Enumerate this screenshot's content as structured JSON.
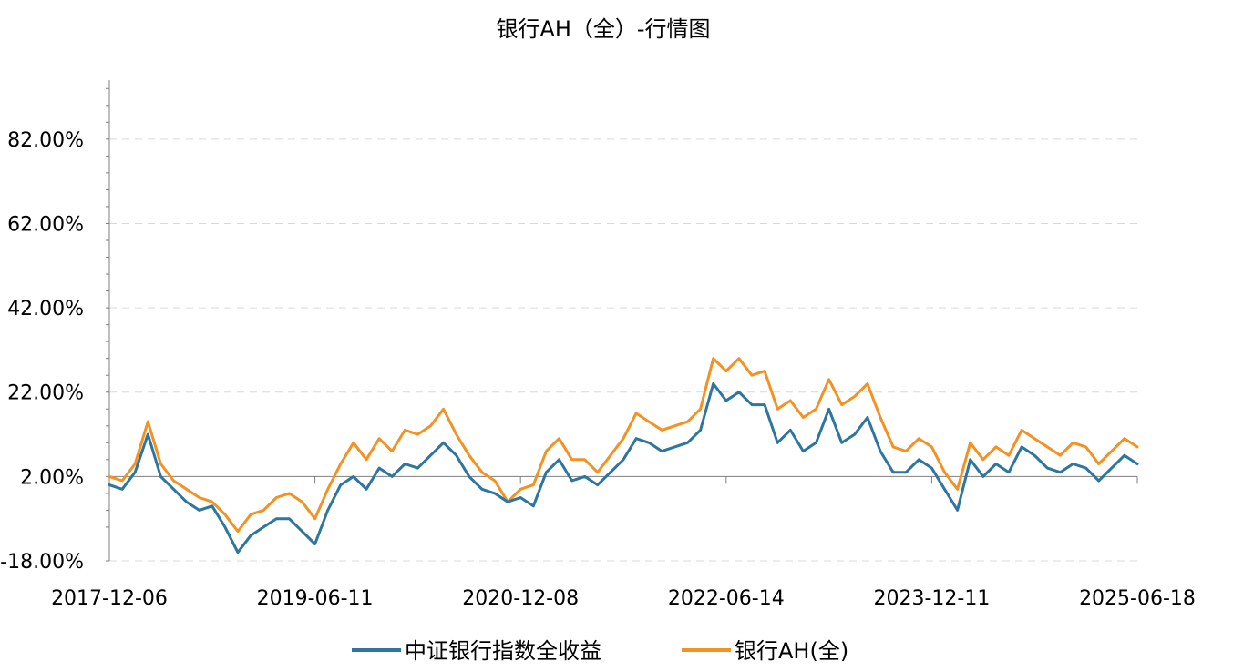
{
  "chart_data": {
    "type": "line",
    "title": "银行AH（全）-行情图",
    "xlabel": "",
    "ylabel": "",
    "x_tick_labels": [
      "2017-12-06",
      "2019-06-11",
      "2020-12-08",
      "2022-06-14",
      "2023-12-11",
      "2025-06-18"
    ],
    "y_tick_labels": [
      "-18.00%",
      "2.00%",
      "22.00%",
      "42.00%",
      "62.00%",
      "82.00%"
    ],
    "y_ticks": [
      -18,
      2,
      22,
      42,
      62,
      82
    ],
    "ylim": [
      -18,
      96
    ],
    "y_unit": "%",
    "grid": {
      "horizontal": true,
      "style": "dashed"
    },
    "legend_position": "bottom",
    "colors": {
      "bank_index": "#2E75A0",
      "bank_ah": "#F39222"
    },
    "x": [
      "2017-12-06",
      "2018-01-10",
      "2018-02-14",
      "2018-03-21",
      "2018-04-25",
      "2018-05-30",
      "2018-07-04",
      "2018-08-08",
      "2018-09-12",
      "2018-10-17",
      "2018-11-21",
      "2018-12-26",
      "2019-01-30",
      "2019-03-06",
      "2019-04-10",
      "2019-05-15",
      "2019-06-11",
      "2019-07-16",
      "2019-08-20",
      "2019-09-24",
      "2019-10-29",
      "2019-12-03",
      "2020-01-07",
      "2020-02-11",
      "2020-03-17",
      "2020-04-21",
      "2020-05-26",
      "2020-06-30",
      "2020-08-04",
      "2020-09-08",
      "2020-10-13",
      "2020-11-17",
      "2020-12-08",
      "2021-01-12",
      "2021-02-16",
      "2021-03-23",
      "2021-04-27",
      "2021-06-01",
      "2021-07-06",
      "2021-08-10",
      "2021-09-14",
      "2021-10-19",
      "2021-11-23",
      "2021-12-28",
      "2022-02-01",
      "2022-03-08",
      "2022-04-12",
      "2022-05-17",
      "2022-06-14",
      "2022-07-19",
      "2022-08-23",
      "2022-09-27",
      "2022-10-31",
      "2022-12-05",
      "2023-01-09",
      "2023-02-13",
      "2023-03-20",
      "2023-04-24",
      "2023-05-29",
      "2023-07-03",
      "2023-08-07",
      "2023-09-11",
      "2023-10-16",
      "2023-11-20",
      "2023-12-11",
      "2024-01-15",
      "2024-02-19",
      "2024-03-25",
      "2024-04-29",
      "2024-06-03",
      "2024-07-08",
      "2024-08-12",
      "2024-09-16",
      "2024-10-21",
      "2024-11-25",
      "2024-12-30",
      "2025-02-03",
      "2025-03-10",
      "2025-04-14",
      "2025-05-19",
      "2025-06-18"
    ],
    "series": [
      {
        "name": "中证银行指数全收益",
        "color": "#2E75A0",
        "values": [
          0,
          -1,
          3,
          12,
          2,
          -1,
          -4,
          -6,
          -5,
          -10,
          -16,
          -12,
          -10,
          -8,
          -8,
          -11,
          -14,
          -6,
          0,
          2,
          -1,
          4,
          2,
          5,
          4,
          7,
          10,
          7,
          2,
          -1,
          -2,
          -4,
          -3,
          -5,
          3,
          6,
          1,
          2,
          0,
          3,
          6,
          11,
          10,
          8,
          9,
          10,
          13,
          24,
          20,
          22,
          19,
          19,
          10,
          13,
          8,
          10,
          18,
          10,
          12,
          16,
          8,
          3,
          3,
          6,
          4,
          -1,
          -6,
          6,
          2,
          5,
          3,
          9,
          7,
          4,
          3,
          5,
          4,
          1,
          4,
          7,
          5
        ]
      },
      {
        "name": "银行AH(全)",
        "color": "#F39222",
        "values": [
          2,
          1,
          5,
          15,
          5,
          1,
          -1,
          -3,
          -4,
          -7,
          -11,
          -7,
          -6,
          -3,
          -2,
          -4,
          -8,
          -1,
          5,
          10,
          6,
          11,
          8,
          13,
          12,
          14,
          18,
          12,
          7,
          3,
          1,
          -4,
          -1,
          0,
          8,
          11,
          6,
          6,
          3,
          7,
          11,
          17,
          15,
          13,
          14,
          15,
          18,
          30,
          27,
          30,
          26,
          27,
          18,
          20,
          16,
          18,
          25,
          19,
          21,
          24,
          16,
          9,
          8,
          11,
          9,
          3,
          -1,
          10,
          6,
          9,
          7,
          13,
          11,
          9,
          7,
          10,
          9,
          5,
          8,
          11,
          9
        ]
      }
    ]
  }
}
